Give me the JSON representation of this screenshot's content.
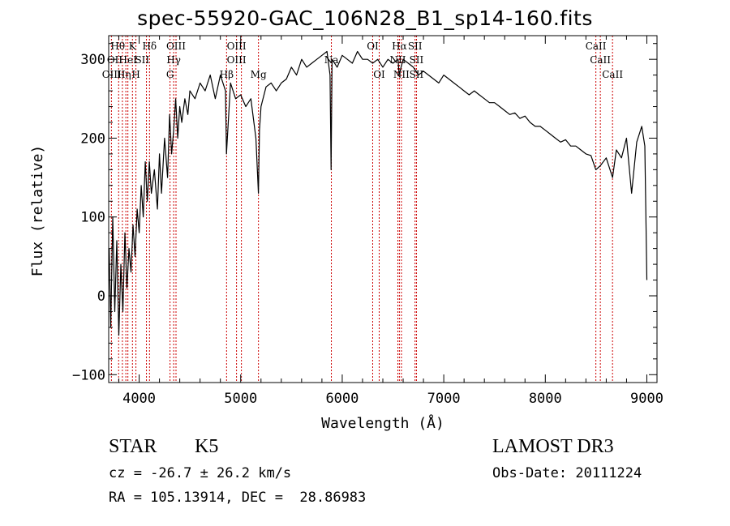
{
  "chart_data": {
    "type": "line",
    "title": "spec-55920-GAC_106N28_B1_sp14-160.fits",
    "xlabel": "Wavelength (Å)",
    "ylabel": "Flux (relative)",
    "xlim": [
      3700,
      9100
    ],
    "ylim": [
      -110,
      330
    ],
    "xticks": [
      4000,
      5000,
      6000,
      7000,
      8000,
      9000
    ],
    "yticks": [
      -100,
      0,
      100,
      200,
      300
    ],
    "series": [
      {
        "name": "flux",
        "x": [
          3705,
          3720,
          3740,
          3760,
          3780,
          3800,
          3820,
          3840,
          3860,
          3880,
          3900,
          3920,
          3940,
          3960,
          3980,
          4000,
          4020,
          4040,
          4060,
          4080,
          4100,
          4120,
          4150,
          4180,
          4200,
          4220,
          4250,
          4280,
          4300,
          4320,
          4340,
          4360,
          4380,
          4400,
          4420,
          4450,
          4480,
          4500,
          4550,
          4600,
          4650,
          4700,
          4750,
          4800,
          4850,
          4860,
          4900,
          4950,
          5000,
          5050,
          5100,
          5150,
          5175,
          5185,
          5200,
          5250,
          5300,
          5350,
          5400,
          5450,
          5500,
          5550,
          5600,
          5650,
          5700,
          5750,
          5800,
          5850,
          5880,
          5890,
          5900,
          5950,
          6000,
          6050,
          6100,
          6150,
          6200,
          6250,
          6300,
          6350,
          6400,
          6450,
          6500,
          6550,
          6560,
          6600,
          6650,
          6700,
          6750,
          6800,
          6850,
          6900,
          6950,
          7000,
          7050,
          7100,
          7150,
          7200,
          7250,
          7300,
          7350,
          7400,
          7450,
          7500,
          7550,
          7600,
          7650,
          7700,
          7750,
          7800,
          7850,
          7900,
          7950,
          8000,
          8050,
          8100,
          8150,
          8200,
          8250,
          8300,
          8350,
          8400,
          8450,
          8498,
          8542,
          8600,
          8662,
          8700,
          8750,
          8800,
          8850,
          8900,
          8950,
          8980,
          9000
        ],
        "values": [
          60,
          -40,
          100,
          -20,
          70,
          -50,
          40,
          -20,
          80,
          10,
          60,
          30,
          90,
          50,
          110,
          80,
          140,
          100,
          170,
          120,
          170,
          130,
          160,
          110,
          180,
          130,
          200,
          150,
          230,
          180,
          210,
          250,
          200,
          240,
          220,
          250,
          230,
          260,
          250,
          270,
          260,
          280,
          250,
          280,
          260,
          180,
          270,
          250,
          255,
          240,
          250,
          200,
          130,
          210,
          240,
          265,
          270,
          260,
          270,
          275,
          290,
          280,
          300,
          290,
          295,
          300,
          305,
          310,
          280,
          160,
          300,
          290,
          305,
          300,
          295,
          310,
          300,
          300,
          295,
          300,
          290,
          300,
          295,
          300,
          280,
          300,
          295,
          290,
          280,
          285,
          280,
          275,
          270,
          280,
          275,
          270,
          265,
          260,
          255,
          260,
          255,
          250,
          245,
          245,
          240,
          235,
          230,
          232,
          225,
          228,
          220,
          215,
          215,
          210,
          205,
          200,
          195,
          198,
          190,
          190,
          185,
          180,
          178,
          160,
          165,
          175,
          150,
          185,
          175,
          200,
          130,
          195,
          215,
          190,
          20
        ]
      }
    ],
    "lines": [
      {
        "label": "Hθ",
        "x": 3798
      },
      {
        "label": "OII",
        "x": 3727
      },
      {
        "label": "OIII",
        "x": 3869
      },
      {
        "label": "K",
        "x": 3934
      },
      {
        "label": "HeI",
        "x": 3889
      },
      {
        "label": "Hη",
        "x": 3835
      },
      {
        "label": "H",
        "x": 3968
      },
      {
        "label": "Hδ",
        "x": 4102
      },
      {
        "label": "SII",
        "x": 4072
      },
      {
        "label": "OIII",
        "x": 4363
      },
      {
        "label": "Hγ",
        "x": 4340
      },
      {
        "label": "G",
        "x": 4304
      },
      {
        "label": "Hβ",
        "x": 4861
      },
      {
        "label": "OIII",
        "x": 4959
      },
      {
        "label": "OIII",
        "x": 5007
      },
      {
        "label": "Mg",
        "x": 5175
      },
      {
        "label": "Na",
        "x": 5893
      },
      {
        "label": "OI",
        "x": 6300
      },
      {
        "label": "OI",
        "x": 6364
      },
      {
        "label": "Hα",
        "x": 6563
      },
      {
        "label": "NII",
        "x": 6548
      },
      {
        "label": "NII",
        "x": 6583
      },
      {
        "label": "SII",
        "x": 6717
      },
      {
        "label": "SII",
        "x": 6731
      },
      {
        "label": "CaII",
        "x": 8498
      },
      {
        "label": "CaII",
        "x": 8542
      },
      {
        "label": "CaII",
        "x": 8662
      }
    ],
    "line_labels": [
      {
        "text": "Hθ",
        "x": 3790,
        "row": 0
      },
      {
        "text": "K",
        "x": 3934,
        "row": 0
      },
      {
        "text": "Hδ",
        "x": 4102,
        "row": 0
      },
      {
        "text": "OIII",
        "x": 4363,
        "row": 0
      },
      {
        "text": "OIII",
        "x": 4959,
        "row": 0
      },
      {
        "text": "OI",
        "x": 6300,
        "row": 0
      },
      {
        "text": "Hα",
        "x": 6563,
        "row": 0
      },
      {
        "text": "SII",
        "x": 6717,
        "row": 0
      },
      {
        "text": "CaII",
        "x": 8498,
        "row": 0
      },
      {
        "text": "OII",
        "x": 3760,
        "row": 1
      },
      {
        "text": "HeI",
        "x": 3889,
        "row": 1
      },
      {
        "text": "SII",
        "x": 4030,
        "row": 1
      },
      {
        "text": "Hγ",
        "x": 4340,
        "row": 1
      },
      {
        "text": "OIII",
        "x": 4959,
        "row": 1
      },
      {
        "text": "Na",
        "x": 5893,
        "row": 1
      },
      {
        "text": "NII",
        "x": 6548,
        "row": 1
      },
      {
        "text": "SII",
        "x": 6731,
        "row": 1
      },
      {
        "text": "CaII",
        "x": 8542,
        "row": 1
      },
      {
        "text": "OIII",
        "x": 3730,
        "row": 2
      },
      {
        "text": "Hη",
        "x": 3850,
        "row": 2
      },
      {
        "text": "H",
        "x": 3968,
        "row": 2
      },
      {
        "text": "G",
        "x": 4304,
        "row": 2
      },
      {
        "text": "Hβ",
        "x": 4861,
        "row": 2
      },
      {
        "text": "Mg",
        "x": 5175,
        "row": 2
      },
      {
        "text": "OI",
        "x": 6364,
        "row": 2
      },
      {
        "text": "NII",
        "x": 6583,
        "row": 2
      },
      {
        "text": "SII",
        "x": 6731,
        "row": 2
      },
      {
        "text": "CaII",
        "x": 8662,
        "row": 2
      }
    ],
    "line_color": "#cc0000",
    "spectrum_color": "#000000"
  },
  "info": {
    "object_class": "STAR",
    "subclass": "K5",
    "survey": "LAMOST DR3",
    "redshift": "cz = -26.7 ± 26.2 km/s",
    "obs_date": "Obs-Date: 20111224",
    "coords": "RA = 105.13914, DEC =  28.86983"
  }
}
